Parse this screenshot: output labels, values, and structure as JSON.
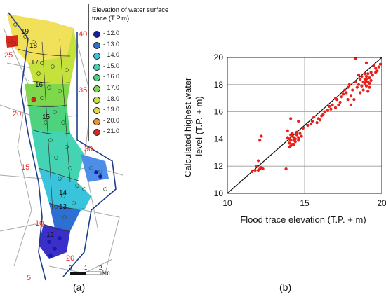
{
  "panels": {
    "a": {
      "tag": "(a)"
    },
    "b": {
      "tag": "(b)"
    }
  },
  "map": {
    "legend_title": "Elevation of water surface trace (T.P.m)",
    "legend_entries": [
      {
        "label": "- 12.0",
        "color": "#1a1aa8"
      },
      {
        "label": "- 13.0",
        "color": "#2e6fd6"
      },
      {
        "label": "- 14.0",
        "color": "#39c4dc"
      },
      {
        "label": "- 15.0",
        "color": "#44d4b4"
      },
      {
        "label": "- 16.0",
        "color": "#4fd27e"
      },
      {
        "label": "- 17.0",
        "color": "#7fd84c"
      },
      {
        "label": "- 18.0",
        "color": "#c6e03c"
      },
      {
        "label": "- 19.0",
        "color": "#e8d848"
      },
      {
        "label": "- 20.0",
        "color": "#e8923a"
      },
      {
        "label": "- 21.0",
        "color": "#d42a22"
      }
    ],
    "red_labels": [
      "40",
      "25",
      "35",
      "20",
      "30",
      "15",
      "10",
      "20",
      "5"
    ],
    "contour_labels": [
      "19",
      "18",
      "17",
      "16",
      "15",
      "14",
      "13",
      "12"
    ],
    "scale_bar": {
      "ticks": [
        "0",
        "1",
        "2"
      ],
      "unit": "km"
    }
  },
  "chart_data": {
    "type": "scatter",
    "xlabel": "Flood trace elevation (T.P. + m)",
    "ylabel": "Calculated highest water level (T.P. + m)",
    "xlim": [
      10,
      20
    ],
    "ylim": [
      10,
      20
    ],
    "xticks": [
      "10",
      "15",
      "20"
    ],
    "yticks": [
      "10",
      "12",
      "14",
      "16",
      "18",
      "20"
    ],
    "grid": true,
    "reference_line": {
      "from": [
        10,
        10
      ],
      "to": [
        20,
        20
      ]
    },
    "point_color": "#e8201a",
    "points": [
      [
        11.6,
        11.6
      ],
      [
        11.8,
        11.7
      ],
      [
        11.9,
        12.0
      ],
      [
        12.0,
        12.4
      ],
      [
        12.1,
        11.8
      ],
      [
        12.2,
        11.9
      ],
      [
        12.1,
        13.9
      ],
      [
        12.2,
        14.2
      ],
      [
        12.3,
        11.8
      ],
      [
        12.0,
        11.7
      ],
      [
        13.8,
        11.8
      ],
      [
        13.9,
        14.6
      ],
      [
        13.9,
        14.1
      ],
      [
        14.0,
        13.4
      ],
      [
        14.0,
        13.7
      ],
      [
        14.0,
        14.0
      ],
      [
        14.1,
        13.9
      ],
      [
        14.1,
        14.3
      ],
      [
        14.1,
        13.5
      ],
      [
        14.2,
        13.6
      ],
      [
        14.2,
        14.2
      ],
      [
        14.2,
        14.4
      ],
      [
        14.3,
        13.9
      ],
      [
        14.3,
        13.6
      ],
      [
        14.3,
        14.1
      ],
      [
        14.4,
        14.0
      ],
      [
        14.4,
        13.8
      ],
      [
        14.5,
        14.3
      ],
      [
        14.5,
        14.5
      ],
      [
        14.6,
        14.1
      ],
      [
        14.6,
        13.9
      ],
      [
        14.7,
        14.4
      ],
      [
        14.8,
        14.2
      ],
      [
        14.1,
        15.5
      ],
      [
        14.6,
        15.3
      ],
      [
        14.9,
        14.8
      ],
      [
        15.4,
        15.1
      ],
      [
        15.5,
        15.3
      ],
      [
        15.6,
        15.6
      ],
      [
        15.8,
        15.2
      ],
      [
        15.9,
        15.5
      ],
      [
        16.0,
        15.4
      ],
      [
        16.1,
        15.7
      ],
      [
        16.2,
        15.8
      ],
      [
        16.5,
        16.1
      ],
      [
        16.6,
        16.4
      ],
      [
        16.7,
        16.2
      ],
      [
        16.8,
        16.5
      ],
      [
        17.0,
        16.3
      ],
      [
        17.0,
        17.0
      ],
      [
        17.1,
        16.9
      ],
      [
        17.2,
        16.5
      ],
      [
        17.4,
        17.1
      ],
      [
        17.5,
        17.3
      ],
      [
        17.6,
        17.6
      ],
      [
        17.7,
        17.4
      ],
      [
        17.8,
        17.8
      ],
      [
        17.8,
        16.9
      ],
      [
        17.9,
        18.0
      ],
      [
        18.0,
        17.2
      ],
      [
        18.0,
        16.5
      ],
      [
        18.1,
        17.6
      ],
      [
        18.2,
        16.9
      ],
      [
        18.3,
        18.2
      ],
      [
        18.4,
        17.8
      ],
      [
        18.5,
        18.0
      ],
      [
        18.6,
        17.4
      ],
      [
        18.6,
        18.4
      ],
      [
        18.7,
        17.9
      ],
      [
        18.7,
        18.6
      ],
      [
        18.8,
        18.2
      ],
      [
        18.8,
        17.6
      ],
      [
        18.9,
        18.1
      ],
      [
        18.9,
        18.8
      ],
      [
        19.0,
        17.9
      ],
      [
        19.0,
        18.4
      ],
      [
        19.0,
        18.6
      ],
      [
        19.1,
        18.2
      ],
      [
        19.1,
        18.8
      ],
      [
        19.2,
        18.1
      ],
      [
        19.2,
        17.8
      ],
      [
        19.2,
        18.5
      ],
      [
        19.3,
        18.9
      ],
      [
        19.3,
        18.3
      ],
      [
        19.4,
        18.7
      ],
      [
        19.5,
        19.4
      ],
      [
        19.6,
        19.2
      ],
      [
        19.7,
        19.0
      ],
      [
        19.8,
        19.3
      ],
      [
        19.9,
        19.5
      ],
      [
        18.3,
        19.9
      ],
      [
        18.5,
        18.7
      ],
      [
        17.3,
        16.7
      ],
      [
        16.3,
        16.0
      ],
      [
        15.2,
        15.0
      ],
      [
        19.0,
        18.2
      ],
      [
        19.1,
        17.5
      ],
      [
        18.9,
        18.4
      ],
      [
        19.0,
        19.6
      ],
      [
        19.6,
        18.9
      ]
    ]
  }
}
